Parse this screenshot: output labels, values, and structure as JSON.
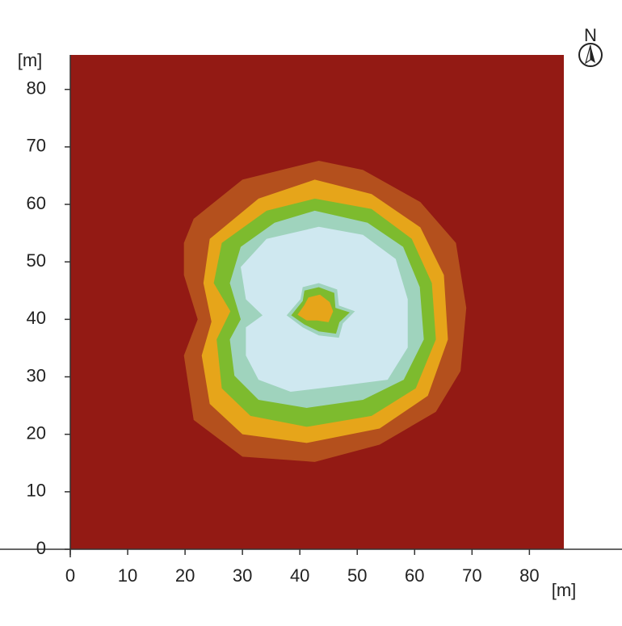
{
  "chart_data": {
    "type": "contour",
    "x_label": "[m]",
    "y_label": "[m]",
    "north_label": "N",
    "xlim": [
      0,
      86
    ],
    "ylim": [
      0,
      86
    ],
    "xticks": [
      0,
      10,
      20,
      30,
      40,
      50,
      60,
      70,
      80
    ],
    "yticks": [
      0,
      10,
      20,
      30,
      40,
      50,
      60,
      70,
      80
    ],
    "background_color": "#931a14",
    "series": [
      {
        "color": "#b4501d",
        "x": [
          21.5,
          30,
          43.3,
          51,
          61,
          67.2,
          69,
          68,
          63.7,
          53.9,
          42.6,
          30,
          21.5,
          19.8,
          22.2,
          19.8,
          19.8
        ],
        "y": [
          57.5,
          64.3,
          67.6,
          66,
          60.4,
          53.3,
          42,
          31,
          23.9,
          18.2,
          15.2,
          16.1,
          22.5,
          33.7,
          40,
          47.7,
          53.3
        ]
      },
      {
        "color": "#e6a51a",
        "x": [
          42.6,
          52.5,
          61,
          65.1,
          65.8,
          62.3,
          53.9,
          41.2,
          30,
          24.3,
          22.9,
          24.6,
          23.2,
          24.3,
          32.8
        ],
        "y": [
          64.3,
          61.8,
          56,
          47.7,
          36.5,
          26.7,
          21,
          18.5,
          20,
          25.3,
          33.7,
          39.6,
          46.3,
          54,
          61
        ]
      },
      {
        "color": "#7dbb2e",
        "x": [
          42.6,
          52.5,
          59.5,
          63,
          63.7,
          60.2,
          52.5,
          41.2,
          31.4,
          26.4,
          25.5,
          27.9,
          25,
          26.4,
          34.2
        ],
        "y": [
          61,
          59.2,
          54,
          46.3,
          36.5,
          28,
          23.2,
          21.3,
          23.2,
          28,
          36.5,
          41.4,
          46.3,
          53.3,
          58.9
        ]
      },
      {
        "color": "#9fd3bd",
        "x": [
          42.6,
          51.8,
          58,
          60.9,
          61.6,
          58.1,
          51,
          41.2,
          32.8,
          28.6,
          27.8,
          29.7,
          27.8,
          29.7,
          35.6
        ],
        "y": [
          58.9,
          56.8,
          52.6,
          45.6,
          36.5,
          29.5,
          26,
          24.6,
          26,
          30.2,
          36.5,
          40,
          46.3,
          52.6,
          56.8
        ]
      },
      {
        "color": "#cfe8f0",
        "x": [
          43.3,
          51,
          56.7,
          58.8,
          58.8,
          55.3,
          46.8,
          38.4,
          32.8,
          30.6,
          30.6,
          33.5,
          30.6,
          29.7,
          34.2
        ],
        "y": [
          56.1,
          54.7,
          50.5,
          43.5,
          35.1,
          29.5,
          28.4,
          27.4,
          29.5,
          33.7,
          38.6,
          40.7,
          43.5,
          49.1,
          54
        ]
      },
      {
        "color": "#9fd3bd",
        "x": [
          40.5,
          43.3,
          46.5,
          46.8,
          49.6,
          47.5,
          46.8,
          43.3,
          40.5,
          37.7,
          40.1
        ],
        "y": [
          45.6,
          46.3,
          45.2,
          42.4,
          41.4,
          39.3,
          36.8,
          37.2,
          38.6,
          40.7,
          43.5
        ]
      },
      {
        "color": "#7dbb2e",
        "x": [
          40.8,
          43.3,
          46,
          46.2,
          48.7,
          46.9,
          46.3,
          43.3,
          40.8,
          38.5,
          40.5
        ],
        "y": [
          45,
          45.6,
          44.6,
          42,
          41.2,
          39.5,
          37.5,
          37.9,
          39.1,
          40.7,
          43.2
        ]
      },
      {
        "color": "#e6a51a",
        "x": [
          41.5,
          43.5,
          45.2,
          45.8,
          45,
          43,
          41.2,
          39.6,
          40.8
        ],
        "y": [
          43.8,
          44.3,
          43,
          41.4,
          39.5,
          39.8,
          39.8,
          40.8,
          42.5
        ]
      }
    ]
  }
}
